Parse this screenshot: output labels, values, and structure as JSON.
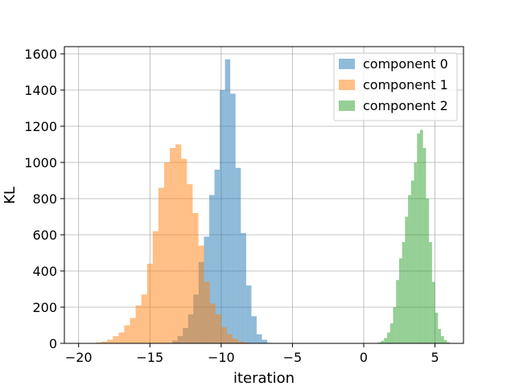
{
  "chart_data": {
    "type": "histogram",
    "title": "",
    "xlabel": "iteration",
    "ylabel": "KL",
    "xlim": [
      -21,
      7
    ],
    "ylim": [
      0,
      1640
    ],
    "grid": true,
    "legend_position": "top-right",
    "x_ticks": [
      -20,
      -15,
      -10,
      -5,
      0,
      5
    ],
    "x_tick_labels": [
      "−20",
      "−15",
      "−10",
      "−5",
      "0",
      "5"
    ],
    "y_ticks": [
      0,
      200,
      400,
      600,
      800,
      1000,
      1200,
      1400,
      1600
    ],
    "y_tick_labels": [
      "0",
      "200",
      "400",
      "600",
      "800",
      "1000",
      "1200",
      "1400",
      "1600"
    ],
    "series": [
      {
        "name": "component 0",
        "color": "#1f77b4",
        "alpha": 0.5,
        "bin_start": -13.8,
        "bin_width": 0.37,
        "counts": [
          2,
          15,
          40,
          85,
          160,
          270,
          450,
          590,
          820,
          960,
          1400,
          1570,
          1380,
          970,
          610,
          320,
          150,
          50,
          20,
          3
        ]
      },
      {
        "name": "component 1",
        "color": "#ff7f0e",
        "alpha": 0.5,
        "bin_start": -19.2,
        "bin_width": 0.4,
        "counts": [
          2,
          5,
          10,
          20,
          40,
          60,
          100,
          140,
          210,
          270,
          440,
          620,
          860,
          1000,
          1080,
          1100,
          1020,
          880,
          720,
          540,
          340,
          220,
          160,
          90,
          50,
          25,
          10,
          5,
          2
        ]
      },
      {
        "name": "component 2",
        "color": "#2ca02c",
        "alpha": 0.5,
        "bin_start": 0.8,
        "bin_width": 0.21,
        "counts": [
          2,
          6,
          15,
          30,
          60,
          110,
          200,
          350,
          470,
          560,
          700,
          820,
          900,
          1000,
          1160,
          1180,
          1080,
          800,
          560,
          340,
          170,
          80,
          40,
          18,
          6,
          2
        ]
      }
    ]
  }
}
